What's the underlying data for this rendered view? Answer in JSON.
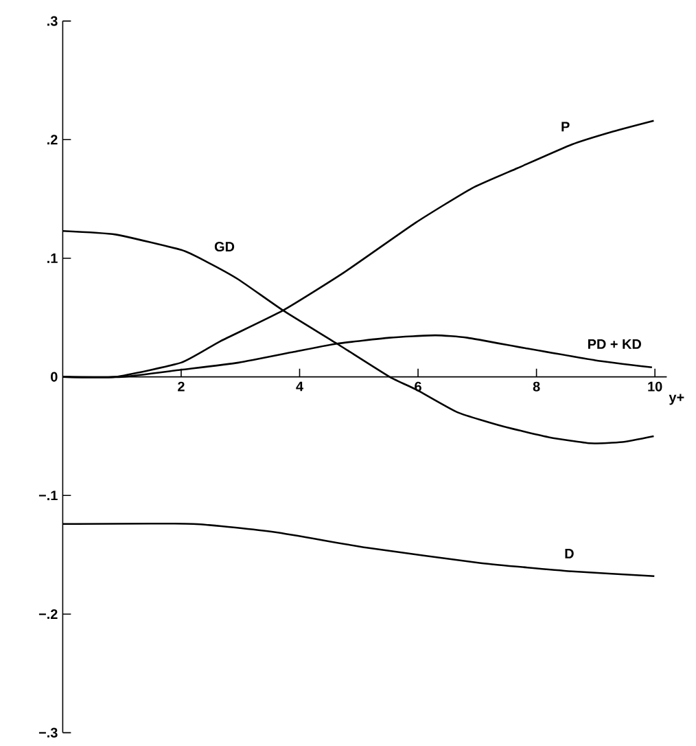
{
  "chart_data": {
    "type": "line",
    "xlabel": "y+",
    "xlim": [
      0,
      10.2
    ],
    "ylim": [
      -0.3,
      0.3
    ],
    "xticks": [
      2,
      4,
      6,
      8,
      10
    ],
    "yticks": [
      {
        "value": -0.3,
        "label": "−.3"
      },
      {
        "value": -0.2,
        "label": "−.2"
      },
      {
        "value": -0.1,
        "label": "−.1"
      },
      {
        "value": 0,
        "label": "0"
      },
      {
        "value": 0.1,
        "label": ".1"
      },
      {
        "value": 0.2,
        "label": ".2"
      },
      {
        "value": 0.3,
        "label": ".3"
      }
    ],
    "marker": "none",
    "line_style": "solid",
    "series": [
      {
        "name": "GD",
        "color": "#000000",
        "x": [
          0,
          0.89,
          2,
          2.43,
          2.97,
          3.72,
          4.63,
          5.52,
          5.98,
          6.67,
          7.45,
          8.22,
          8.91,
          9.45,
          9.98
        ],
        "values": [
          0.123,
          0.12,
          0.107,
          0.097,
          0.082,
          0.056,
          0.028,
          0,
          -0.011,
          -0.03,
          -0.042,
          -0.051,
          -0.056,
          -0.055,
          -0.05
        ]
      },
      {
        "name": "P",
        "color": "#000000",
        "x": [
          0,
          0.89,
          2,
          2.66,
          3.72,
          4.75,
          5.96,
          6.91,
          7.68,
          8.6,
          9.3,
          9.98
        ],
        "values": [
          0,
          0,
          0.012,
          0.03,
          0.056,
          0.088,
          0.13,
          0.159,
          0.176,
          0.196,
          0.207,
          0.216
        ]
      },
      {
        "name": "PD + KD",
        "color": "#000000",
        "x": [
          0,
          1,
          2,
          2.97,
          3.9,
          4.63,
          5.52,
          6.29,
          6.83,
          7.83,
          8.99,
          9.95
        ],
        "values": [
          0,
          0,
          0.006,
          0.012,
          0.021,
          0.028,
          0.033,
          0.035,
          0.033,
          0.024,
          0.014,
          0.008
        ]
      },
      {
        "name": "D",
        "color": "#000000",
        "x": [
          0,
          2.2,
          3.59,
          5.13,
          7.06,
          8.6,
          9.99
        ],
        "values": [
          -0.124,
          -0.124,
          -0.131,
          -0.144,
          -0.157,
          -0.164,
          -0.168
        ]
      }
    ]
  }
}
